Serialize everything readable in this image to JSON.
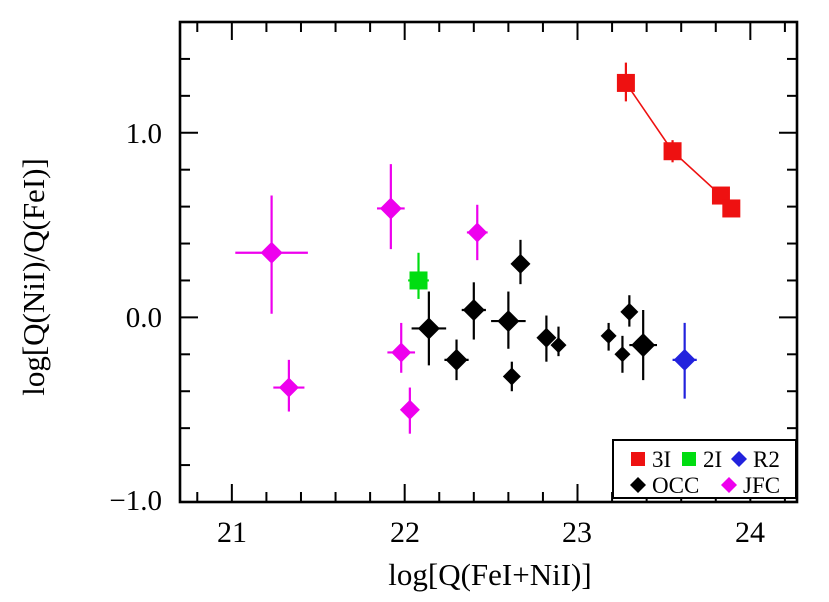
{
  "figure": {
    "background": "#ffffff",
    "axis_color": "#000000"
  },
  "chart_data": {
    "type": "scatter",
    "title": "",
    "xlabel": "log[Q(FeI+NiI)]",
    "ylabel": "log[Q(NiI)/Q(FeI)]",
    "xlim": [
      20.7,
      24.27
    ],
    "ylim": [
      -1.0,
      1.6
    ],
    "grid": false,
    "minor_tick_step": 0.2,
    "x_major_ticks": [
      21,
      22,
      23,
      24
    ],
    "x_tick_labels": [
      "21",
      "22",
      "23",
      "24"
    ],
    "y_major_ticks": [
      1.0,
      0.0,
      -1.0
    ],
    "y_tick_labels": [
      "1.0",
      "0.0",
      "−1.0"
    ],
    "legend_position": "bottom-right",
    "legend_rows": [
      [
        "3I",
        "2I",
        "R2"
      ],
      [
        "OCC",
        "JFC"
      ]
    ],
    "series": [
      {
        "name": "3I",
        "color": "#ee1111",
        "marker": "square",
        "connected": true,
        "points": [
          {
            "x": 23.28,
            "y": 1.27,
            "yerr_lo": 0.1,
            "yerr_hi": 0.11,
            "size": 9
          },
          {
            "x": 23.55,
            "y": 0.9,
            "yerr_lo": 0.06,
            "yerr_hi": 0.06,
            "size": 9
          },
          {
            "x": 23.83,
            "y": 0.66,
            "yerr_lo": 0.04,
            "yerr_hi": 0.04,
            "size": 9
          },
          {
            "x": 23.89,
            "y": 0.59,
            "yerr_lo": 0.04,
            "yerr_hi": 0.04,
            "size": 9
          }
        ]
      },
      {
        "name": "2I",
        "color": "#00dd11",
        "marker": "square",
        "connected": false,
        "points": [
          {
            "x": 22.08,
            "y": 0.2,
            "xerr": 0.06,
            "yerr_lo": 0.1,
            "yerr_hi": 0.15,
            "size": 9
          }
        ]
      },
      {
        "name": "R2",
        "color": "#2222dd",
        "marker": "diamond",
        "connected": false,
        "points": [
          {
            "x": 23.62,
            "y": -0.23,
            "xerr": 0.07,
            "yerr_lo": 0.21,
            "yerr_hi": 0.2,
            "size": 11
          }
        ]
      },
      {
        "name": "OCC",
        "color": "#000000",
        "marker": "diamond",
        "connected": false,
        "points": [
          {
            "x": 22.14,
            "y": -0.06,
            "xerr": 0.1,
            "yerr_lo": 0.2,
            "yerr_hi": 0.2,
            "size": 11
          },
          {
            "x": 22.3,
            "y": -0.23,
            "xerr": 0.07,
            "yerr_lo": 0.11,
            "yerr_hi": 0.11,
            "size": 11
          },
          {
            "x": 22.4,
            "y": 0.04,
            "xerr": 0.07,
            "yerr_lo": 0.16,
            "yerr_hi": 0.15,
            "size": 11
          },
          {
            "x": 22.6,
            "y": -0.02,
            "xerr": 0.1,
            "yerr_lo": 0.15,
            "yerr_hi": 0.16,
            "size": 11
          },
          {
            "x": 22.67,
            "y": 0.29,
            "yerr_lo": 0.11,
            "yerr_hi": 0.13,
            "size": 10
          },
          {
            "x": 22.62,
            "y": -0.32,
            "yerr_lo": 0.08,
            "yerr_hi": 0.08,
            "size": 9
          },
          {
            "x": 22.82,
            "y": -0.11,
            "yerr_lo": 0.13,
            "yerr_hi": 0.12,
            "size": 10
          },
          {
            "x": 22.89,
            "y": -0.15,
            "yerr_lo": 0.06,
            "yerr_hi": 0.1,
            "size": 8
          },
          {
            "x": 23.18,
            "y": -0.1,
            "yerr_lo": 0.08,
            "yerr_hi": 0.07,
            "size": 8
          },
          {
            "x": 23.3,
            "y": 0.03,
            "yerr_lo": 0.08,
            "yerr_hi": 0.09,
            "size": 9
          },
          {
            "x": 23.26,
            "y": -0.2,
            "yerr_lo": 0.1,
            "yerr_hi": 0.1,
            "size": 8
          },
          {
            "x": 23.38,
            "y": -0.15,
            "xerr": 0.08,
            "yerr_lo": 0.19,
            "yerr_hi": 0.19,
            "size": 12
          }
        ]
      },
      {
        "name": "JFC",
        "color": "#ee00ee",
        "marker": "diamond",
        "connected": false,
        "points": [
          {
            "x": 21.23,
            "y": 0.35,
            "xerr": 0.21,
            "yerr_lo": 0.33,
            "yerr_hi": 0.31,
            "size": 11
          },
          {
            "x": 21.33,
            "y": -0.38,
            "xerr": 0.09,
            "yerr_lo": 0.13,
            "yerr_hi": 0.15,
            "size": 10
          },
          {
            "x": 21.92,
            "y": 0.59,
            "xerr": 0.08,
            "yerr_lo": 0.22,
            "yerr_hi": 0.24,
            "size": 11
          },
          {
            "x": 21.98,
            "y": -0.19,
            "xerr": 0.08,
            "yerr_lo": 0.11,
            "yerr_hi": 0.16,
            "size": 10
          },
          {
            "x": 22.03,
            "y": -0.5,
            "xerr": 0.04,
            "yerr_lo": 0.13,
            "yerr_hi": 0.12,
            "size": 10
          },
          {
            "x": 22.42,
            "y": 0.46,
            "xerr": 0.06,
            "yerr_lo": 0.15,
            "yerr_hi": 0.15,
            "size": 10
          }
        ]
      }
    ]
  }
}
